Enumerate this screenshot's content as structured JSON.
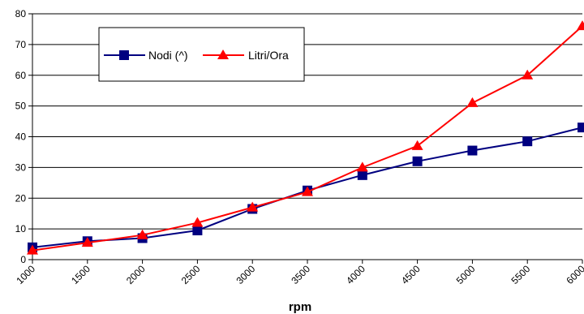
{
  "chart_data": {
    "type": "line",
    "x": [
      1000,
      1500,
      2000,
      2500,
      3000,
      3500,
      4000,
      4500,
      5000,
      5500,
      6000
    ],
    "series": [
      {
        "name": "Nodi (^)",
        "color": "#000080",
        "marker": "square",
        "values": [
          4,
          6,
          7,
          9.5,
          16.5,
          22.5,
          27.5,
          32,
          35.5,
          38.5,
          43
        ]
      },
      {
        "name": "Litri/Ora",
        "color": "#ff0000",
        "marker": "triangle",
        "values": [
          3,
          5.5,
          8,
          12,
          17,
          22,
          30,
          37,
          51,
          60,
          76
        ]
      }
    ],
    "xlabel": "rpm",
    "ylabel": "",
    "xticks": [
      "1000",
      "1500",
      "2000",
      "2500",
      "3000",
      "3500",
      "4000",
      "4500",
      "5000",
      "5500",
      "6000"
    ],
    "yticks": [
      "0",
      "10",
      "20",
      "30",
      "40",
      "50",
      "60",
      "70",
      "80"
    ],
    "xlim": [
      1000,
      6000
    ],
    "ylim": [
      0,
      80
    ],
    "grid": "horizontal",
    "legend_position": "top-left inside"
  }
}
